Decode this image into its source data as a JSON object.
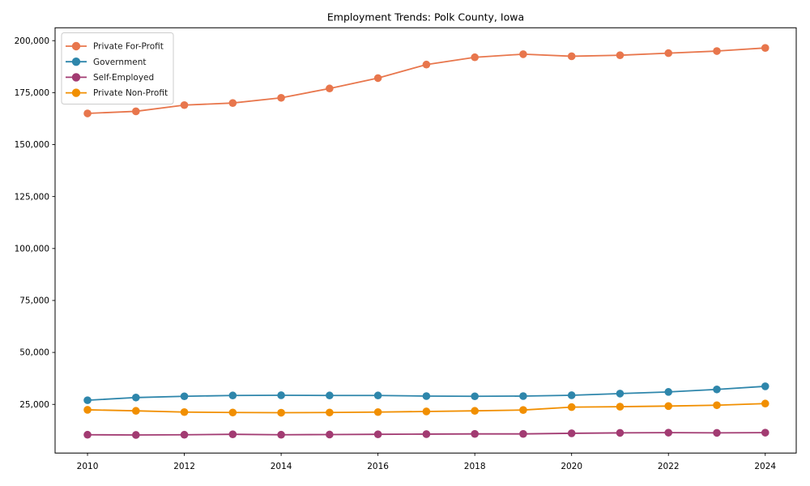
{
  "chart_data": {
    "type": "line",
    "title": "Employment Trends: Polk County, Iowa",
    "xlabel": "",
    "ylabel": "",
    "x_years": [
      2010,
      2011,
      2012,
      2013,
      2014,
      2015,
      2016,
      2017,
      2018,
      2019,
      2020,
      2021,
      2022,
      2023,
      2024
    ],
    "series": [
      {
        "name": "Private For-Profit",
        "color": "#E8764C",
        "marker": "circle",
        "values": [
          165000,
          166000,
          169000,
          170000,
          172500,
          177000,
          182000,
          188500,
          192000,
          193500,
          192500,
          193000,
          194000,
          195000,
          196500
        ]
      },
      {
        "name": "Government",
        "color": "#2E86AB",
        "marker": "circle",
        "values": [
          27000,
          28300,
          28900,
          29300,
          29400,
          29300,
          29300,
          29000,
          28900,
          29000,
          29400,
          30200,
          31000,
          32200,
          33700
        ]
      },
      {
        "name": "Self-Employed",
        "color": "#A23B72",
        "marker": "circle",
        "values": [
          10400,
          10300,
          10400,
          10600,
          10400,
          10500,
          10600,
          10700,
          10800,
          10800,
          11100,
          11300,
          11400,
          11300,
          11400
        ]
      },
      {
        "name": "Private Non-Profit",
        "color": "#F18F01",
        "marker": "circle",
        "values": [
          22400,
          21900,
          21300,
          21100,
          21000,
          21100,
          21300,
          21600,
          21900,
          22300,
          23700,
          23900,
          24200,
          24600,
          25400
        ]
      }
    ],
    "xticks": {
      "values": [
        2010,
        2012,
        2014,
        2016,
        2018,
        2020,
        2022,
        2024
      ],
      "labels": [
        "2010",
        "2012",
        "2014",
        "2016",
        "2018",
        "2020",
        "2022",
        "2024"
      ]
    },
    "yticks": {
      "values": [
        25000,
        50000,
        75000,
        100000,
        125000,
        150000,
        175000,
        200000
      ],
      "labels": [
        "25,000",
        "50,000",
        "75,000",
        "100,000",
        "125,000",
        "150,000",
        "175,000",
        "200,000"
      ]
    },
    "xlim": [
      2009.33,
      2024.64
    ],
    "ylim": [
      1600,
      206200
    ],
    "grid": false,
    "legend_position": "upper left",
    "legend_entries": [
      "Private For-Profit",
      "Government",
      "Self-Employed",
      "Private Non-Profit"
    ]
  },
  "colors": {
    "background": "#ffffff",
    "spine": "#000000",
    "tick": "#000000",
    "text": "#000000",
    "legend_border": "#cccccc",
    "legend_background": "#ffffff"
  }
}
